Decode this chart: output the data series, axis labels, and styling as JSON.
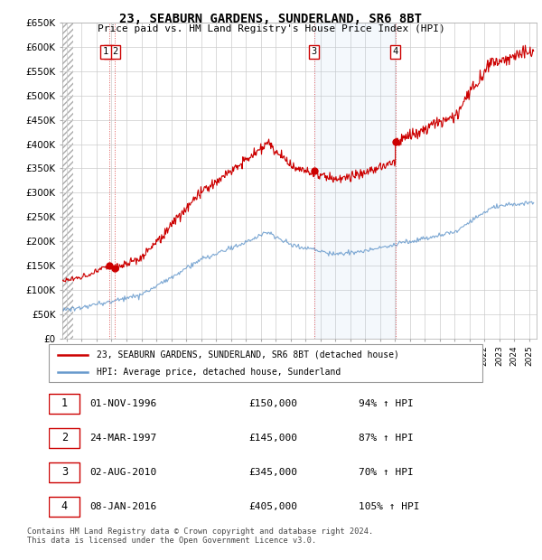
{
  "title_line1": "23, SEABURN GARDENS, SUNDERLAND, SR6 8BT",
  "title_line2": "Price paid vs. HM Land Registry's House Price Index (HPI)",
  "sales": [
    {
      "num": 1,
      "date_year": 1996.833,
      "price": 150000,
      "label": "01-NOV-1996",
      "pct": "94%",
      "dir": "↑"
    },
    {
      "num": 2,
      "date_year": 1997.23,
      "price": 145000,
      "label": "24-MAR-1997",
      "pct": "87%",
      "dir": "↑"
    },
    {
      "num": 3,
      "date_year": 2010.583,
      "price": 345000,
      "label": "02-AUG-2010",
      "pct": "70%",
      "dir": "↑"
    },
    {
      "num": 4,
      "date_year": 2016.03,
      "price": 405000,
      "label": "08-JAN-2016",
      "pct": "105%",
      "dir": "↑"
    }
  ],
  "legend_property": "23, SEABURN GARDENS, SUNDERLAND, SR6 8BT (detached house)",
  "legend_hpi": "HPI: Average price, detached house, Sunderland",
  "footer": "Contains HM Land Registry data © Crown copyright and database right 2024.\nThis data is licensed under the Open Government Licence v3.0.",
  "property_line_color": "#cc0000",
  "hpi_line_color": "#6699cc",
  "hpi_fill_color": "#ddeeff",
  "sale_marker_color": "#cc0000",
  "sale_box_color": "#cc0000",
  "dashed_line_color": "#dd4444",
  "grid_color": "#cccccc",
  "hatch_color": "#cccccc",
  "xmin": 1993.7,
  "xmax": 2025.5,
  "ymin": 0,
  "ymax": 650000
}
